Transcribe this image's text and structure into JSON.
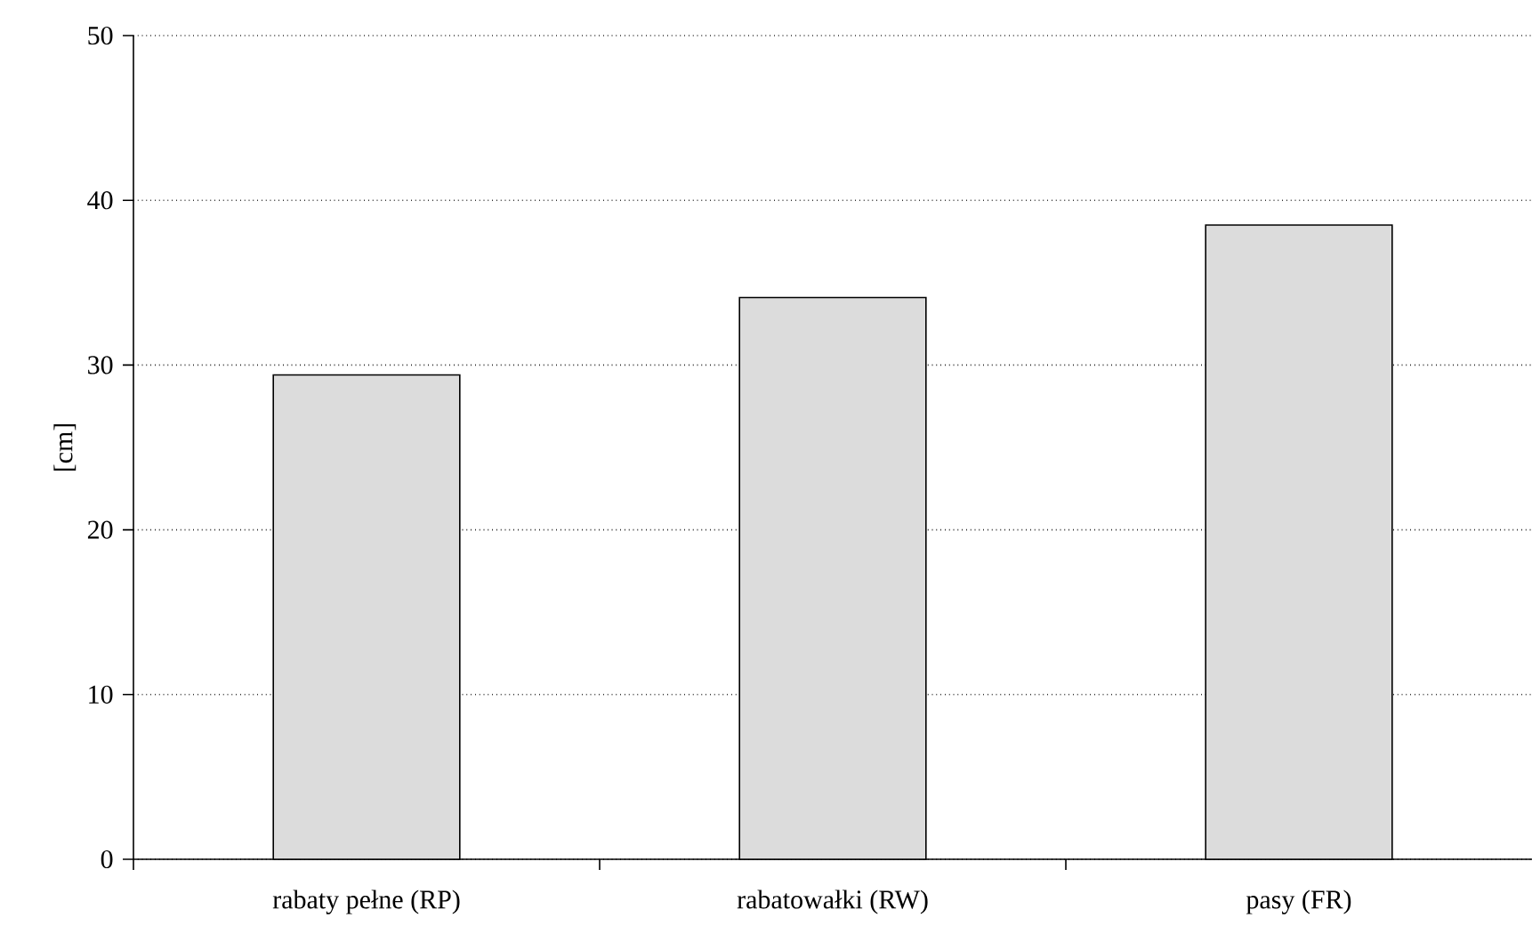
{
  "chart_data": {
    "type": "bar",
    "ylabel": "[cm]",
    "categories": [
      "rabaty pełne (RP)",
      "rabatowałki (RW)",
      "pasy (FR)"
    ],
    "values": [
      29.4,
      34.1,
      38.5
    ],
    "color": "#dcdcdc",
    "ylim": [
      0,
      50
    ],
    "yticks": [
      0,
      10,
      20,
      30,
      40,
      50
    ],
    "grid": "y"
  }
}
